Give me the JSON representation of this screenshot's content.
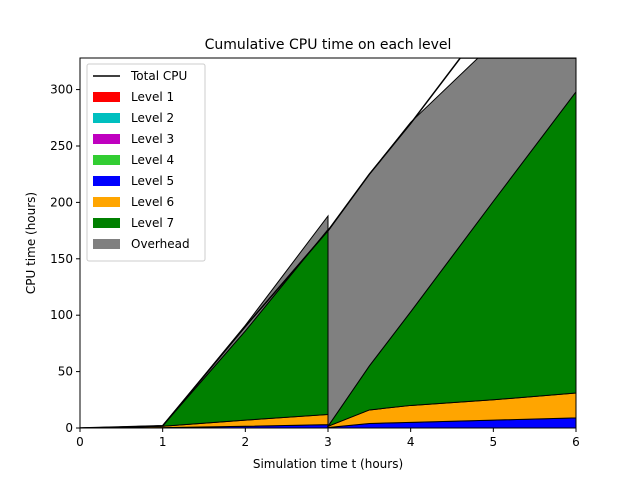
{
  "chart_data": {
    "type": "area",
    "title": "Cumulative CPU time on each level",
    "xlabel": "Simulation time t (hours)",
    "ylabel": "CPU time (hours)",
    "xlim": [
      0,
      6
    ],
    "ylim": [
      0,
      328
    ],
    "xticks": [
      0,
      1,
      2,
      3,
      4,
      5,
      6
    ],
    "yticks": [
      0,
      50,
      100,
      150,
      200,
      250,
      300
    ],
    "grid": false,
    "legend_position": "top-left",
    "stacked": true,
    "segments": [
      {
        "x": [
          0,
          1,
          2,
          3
        ],
        "series": [
          {
            "name": "Level 1",
            "values": [
              0,
              0,
              0,
              0
            ]
          },
          {
            "name": "Level 2",
            "values": [
              0,
              0,
              0,
              0
            ]
          },
          {
            "name": "Level 3",
            "values": [
              0,
              0,
              0,
              0
            ]
          },
          {
            "name": "Level 4",
            "values": [
              0,
              0,
              0,
              0
            ]
          },
          {
            "name": "Level 5",
            "values": [
              0,
              0.3,
              1.5,
              3
            ]
          },
          {
            "name": "Level 6",
            "values": [
              0,
              1.2,
              5.5,
              9
            ]
          },
          {
            "name": "Level 7",
            "values": [
              0,
              0.5,
              79,
              164
            ]
          },
          {
            "name": "Overhead",
            "values": [
              0,
              0,
              5,
              12
            ]
          }
        ]
      },
      {
        "x": [
          3,
          3.5,
          4,
          5,
          6
        ],
        "series": [
          {
            "name": "Level 1",
            "values": [
              0,
              0,
              0,
              0,
              0
            ]
          },
          {
            "name": "Level 2",
            "values": [
              0,
              0,
              0,
              0,
              0
            ]
          },
          {
            "name": "Level 3",
            "values": [
              0,
              0,
              0,
              0,
              0
            ]
          },
          {
            "name": "Level 4",
            "values": [
              0,
              0,
              0,
              0,
              0
            ]
          },
          {
            "name": "Level 5",
            "values": [
              0.5,
              4,
              5,
              7,
              9
            ]
          },
          {
            "name": "Level 6",
            "values": [
              1,
              12,
              15,
              18,
              22
            ]
          },
          {
            "name": "Level 7",
            "values": [
              0,
              39,
              83,
              176,
              267
            ]
          },
          {
            "name": "Overhead",
            "values": [
              173,
              170,
              168,
              140,
              95
            ]
          }
        ]
      }
    ],
    "total_cpu": {
      "name": "Total CPU",
      "x": [
        0,
        1,
        2,
        3,
        3.5,
        4,
        4.6,
        6
      ],
      "values": [
        0,
        2,
        90,
        175,
        225,
        270,
        328,
        328
      ]
    },
    "legend": [
      {
        "label": "Total CPU",
        "kind": "line",
        "color": "#000000"
      },
      {
        "label": "Level 1",
        "kind": "patch",
        "color": "#ff0000"
      },
      {
        "label": "Level 2",
        "kind": "patch",
        "color": "#00bfbf"
      },
      {
        "label": "Level 3",
        "kind": "patch",
        "color": "#bf00bf"
      },
      {
        "label": "Level 4",
        "kind": "patch",
        "color": "#32cd32"
      },
      {
        "label": "Level 5",
        "kind": "patch",
        "color": "#0000ff"
      },
      {
        "label": "Level 6",
        "kind": "patch",
        "color": "#ffa500"
      },
      {
        "label": "Level 7",
        "kind": "patch",
        "color": "#008000"
      },
      {
        "label": "Overhead",
        "kind": "patch",
        "color": "#808080"
      }
    ],
    "colors": {
      "Level 1": "#ff0000",
      "Level 2": "#00bfbf",
      "Level 3": "#bf00bf",
      "Level 4": "#32cd32",
      "Level 5": "#0000ff",
      "Level 6": "#ffa500",
      "Level 7": "#008000",
      "Overhead": "#808080"
    }
  }
}
